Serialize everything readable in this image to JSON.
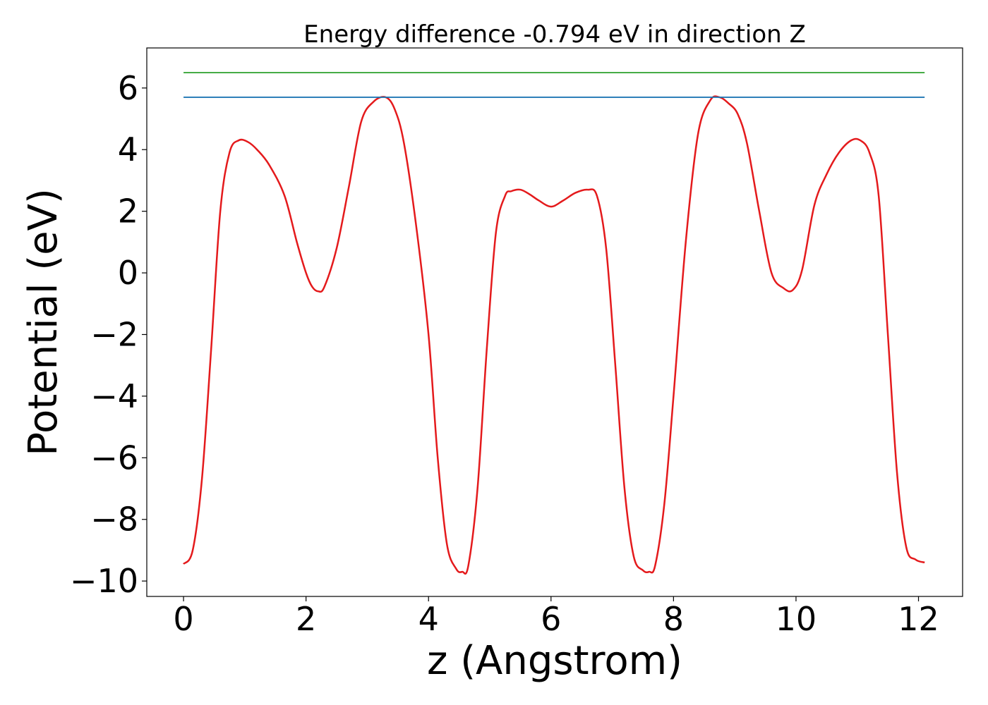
{
  "chart_data": {
    "type": "line",
    "title": "Energy difference -0.794 eV in direction Z",
    "xlabel": "z (Angstrom)",
    "ylabel": "Potential (eV)",
    "xlim": [
      -0.6,
      12.72
    ],
    "ylim": [
      -10.5,
      7.3
    ],
    "xticks": [
      0,
      2,
      4,
      6,
      8,
      10,
      12
    ],
    "xtick_labels": [
      "0",
      "2",
      "4",
      "6",
      "8",
      "10",
      "12"
    ],
    "yticks": [
      -10,
      -8,
      -6,
      -4,
      -2,
      0,
      2,
      4,
      6
    ],
    "ytick_labels": [
      "−10",
      "−8",
      "−6",
      "−4",
      "−2",
      "0",
      "2",
      "4",
      "6"
    ],
    "grid": false,
    "legend": "none",
    "series": [
      {
        "color": "#e41a1c",
        "style": "curve",
        "x": [
          0.0,
          0.15,
          0.3,
          0.45,
          0.6,
          0.75,
          0.9,
          1.05,
          1.2,
          1.4,
          1.65,
          1.85,
          2.0,
          2.1,
          2.2,
          2.3,
          2.5,
          2.7,
          2.9,
          3.1,
          3.3,
          3.45,
          3.6,
          3.8,
          4.0,
          4.15,
          4.3,
          4.45,
          4.55,
          4.65,
          4.8,
          4.95,
          5.1,
          5.25,
          5.35,
          5.5,
          5.65,
          5.8,
          6.0,
          6.2,
          6.4,
          6.6,
          6.75,
          6.9,
          7.05,
          7.2,
          7.35,
          7.5,
          7.6,
          7.7,
          7.85,
          8.0,
          8.2,
          8.4,
          8.6,
          8.75,
          8.9,
          9.05,
          9.2,
          9.4,
          9.6,
          9.8,
          9.95,
          10.1,
          10.3,
          10.5,
          10.7,
          10.9,
          11.05,
          11.2,
          11.35,
          11.5,
          11.65,
          11.8,
          11.95,
          12.1
        ],
        "y": [
          -9.45,
          -9.0,
          -6.7,
          -2.5,
          2.0,
          3.9,
          4.3,
          4.25,
          4.0,
          3.5,
          2.5,
          1.0,
          0.0,
          -0.45,
          -0.6,
          -0.45,
          0.8,
          2.8,
          4.9,
          5.55,
          5.7,
          5.3,
          4.2,
          1.5,
          -2.0,
          -6.0,
          -8.8,
          -9.6,
          -9.7,
          -9.5,
          -7.0,
          -2.5,
          1.3,
          2.5,
          2.65,
          2.7,
          2.55,
          2.35,
          2.15,
          2.35,
          2.6,
          2.7,
          2.5,
          0.8,
          -3.0,
          -7.0,
          -9.2,
          -9.65,
          -9.7,
          -9.5,
          -7.5,
          -4.0,
          1.0,
          4.5,
          5.6,
          5.7,
          5.5,
          5.15,
          4.2,
          2.0,
          0.0,
          -0.5,
          -0.55,
          0.1,
          2.2,
          3.2,
          3.9,
          4.3,
          4.3,
          3.9,
          2.5,
          -2.0,
          -6.5,
          -8.9,
          -9.3,
          -9.4
        ]
      },
      {
        "color": "#1f77b4",
        "style": "line",
        "x": [
          0.0,
          12.1
        ],
        "y": [
          5.7,
          5.7
        ]
      },
      {
        "color": "#2ca02c",
        "style": "line",
        "x": [
          0.0,
          12.1
        ],
        "y": [
          6.5,
          6.5
        ]
      }
    ]
  }
}
